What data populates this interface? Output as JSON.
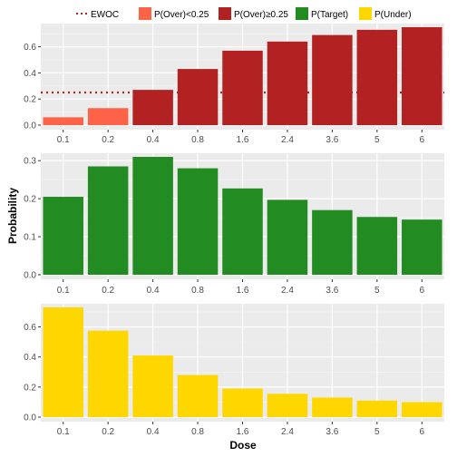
{
  "chart_data": {
    "type": "bar",
    "categories": [
      "0.1",
      "0.2",
      "0.4",
      "0.8",
      "1.6",
      "2.4",
      "3.6",
      "5",
      "6"
    ],
    "xlabel": "Dose",
    "ylabel": "Probability",
    "grid": true,
    "legend": {
      "placement": "top",
      "entries": [
        {
          "label": "EWOC",
          "color": "#b22222",
          "key": "dotted-line"
        },
        {
          "label": "P(Over)<0.25",
          "color": "#ff6347",
          "key": "box"
        },
        {
          "label": "P(Over)≥0.25",
          "color": "#b22222",
          "key": "box"
        },
        {
          "label": "P(Target)",
          "color": "#228b22",
          "key": "box"
        },
        {
          "label": "P(Under)",
          "color": "#ffd700",
          "key": "box"
        }
      ]
    },
    "panels": [
      {
        "name": "P(Over)",
        "values": [
          0.06,
          0.13,
          0.27,
          0.43,
          0.57,
          0.64,
          0.69,
          0.73,
          0.75
        ],
        "colors": [
          "#ff6347",
          "#ff6347",
          "#b22222",
          "#b22222",
          "#b22222",
          "#b22222",
          "#b22222",
          "#b22222",
          "#b22222"
        ],
        "ylim": [
          0,
          0.75
        ],
        "yticks": [
          0.0,
          0.2,
          0.4,
          0.6
        ],
        "ytick_labels": [
          "0.0",
          "0.2",
          "0.4",
          "0.6"
        ],
        "hline": {
          "value": 0.25,
          "color": "#b22222",
          "style": "dotted",
          "label": "EWOC"
        }
      },
      {
        "name": "P(Target)",
        "values": [
          0.205,
          0.285,
          0.31,
          0.28,
          0.227,
          0.197,
          0.17,
          0.152,
          0.145
        ],
        "colors": [
          "#228b22",
          "#228b22",
          "#228b22",
          "#228b22",
          "#228b22",
          "#228b22",
          "#228b22",
          "#228b22",
          "#228b22"
        ],
        "ylim": [
          0,
          0.31
        ],
        "yticks": [
          0.0,
          0.1,
          0.2,
          0.3
        ],
        "ytick_labels": [
          "0.0",
          "0.1",
          "0.2",
          "0.3"
        ]
      },
      {
        "name": "P(Under)",
        "values": [
          0.73,
          0.575,
          0.41,
          0.28,
          0.19,
          0.155,
          0.13,
          0.11,
          0.1
        ],
        "colors": [
          "#ffd700",
          "#ffd700",
          "#ffd700",
          "#ffd700",
          "#ffd700",
          "#ffd700",
          "#ffd700",
          "#ffd700",
          "#ffd700"
        ],
        "ylim": [
          0,
          0.73
        ],
        "yticks": [
          0.0,
          0.2,
          0.4,
          0.6
        ],
        "ytick_labels": [
          "0.0",
          "0.2",
          "0.4",
          "0.6"
        ]
      }
    ]
  }
}
